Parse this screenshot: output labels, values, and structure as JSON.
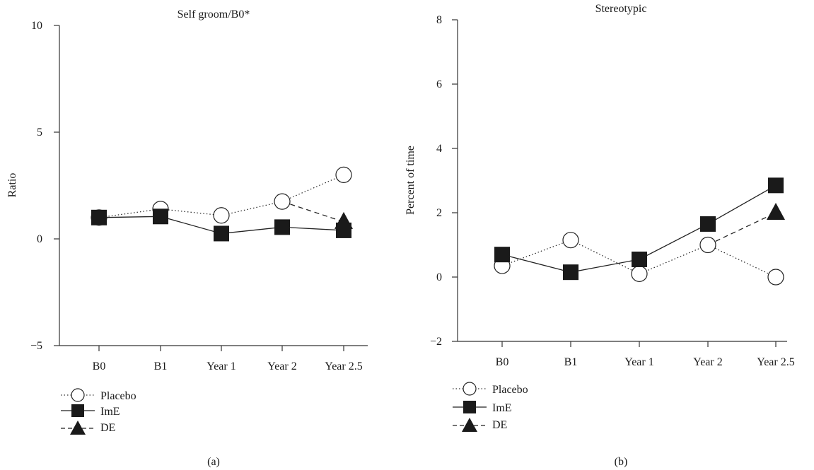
{
  "chart_data": [
    {
      "type": "line",
      "panel_label": "(a)",
      "title": "Self groom/B0*",
      "xlabel": "",
      "ylabel": "Ratio",
      "categories": [
        "B0",
        "B1",
        "Year 1",
        "Year 2",
        "Year 2.5"
      ],
      "ylim": [
        -5,
        10
      ],
      "yticks": [
        -5,
        0,
        5,
        10
      ],
      "grid": false,
      "legend_position": "below",
      "series": [
        {
          "name": "Placebo",
          "marker": "open-circle",
          "line_style": "dotted",
          "values": [
            1.0,
            1.4,
            1.1,
            1.75,
            3.0
          ]
        },
        {
          "name": "ImE",
          "marker": "filled-square",
          "line_style": "solid",
          "values": [
            1.0,
            1.05,
            0.25,
            0.55,
            0.4
          ]
        },
        {
          "name": "DE",
          "marker": "filled-triangle",
          "line_style": "dashed",
          "values": [
            null,
            null,
            null,
            1.75,
            0.8
          ]
        }
      ]
    },
    {
      "type": "line",
      "panel_label": "(b)",
      "title": "Stereotypic",
      "xlabel": "",
      "ylabel": "Percent of time",
      "categories": [
        "B0",
        "B1",
        "Year 1",
        "Year 2",
        "Year 2.5"
      ],
      "ylim": [
        -2,
        8
      ],
      "yticks": [
        -2,
        0,
        2,
        4,
        6,
        8
      ],
      "grid": false,
      "legend_position": "below",
      "series": [
        {
          "name": "Placebo",
          "marker": "open-circle",
          "line_style": "dotted",
          "values": [
            0.35,
            1.15,
            0.1,
            1.0,
            0.0
          ]
        },
        {
          "name": "ImE",
          "marker": "filled-square",
          "line_style": "solid",
          "values": [
            0.7,
            0.15,
            0.55,
            1.65,
            2.85
          ]
        },
        {
          "name": "DE",
          "marker": "filled-triangle",
          "line_style": "dashed",
          "values": [
            null,
            null,
            null,
            1.0,
            2.0
          ]
        }
      ]
    }
  ]
}
